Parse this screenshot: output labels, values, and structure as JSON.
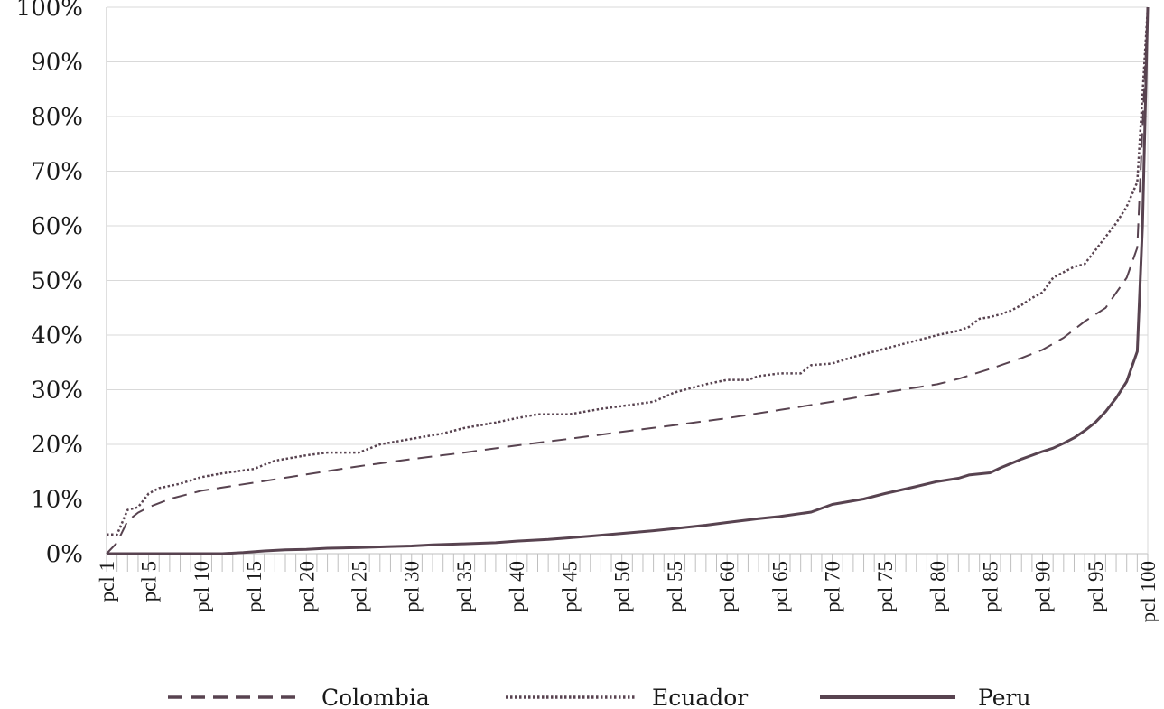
{
  "chart_data": {
    "type": "line",
    "title": "",
    "xlabel": "",
    "ylabel": "",
    "ylim": [
      0,
      100
    ],
    "y_ticks": [
      "0%",
      "10%",
      "20%",
      "30%",
      "40%",
      "50%",
      "60%",
      "70%",
      "80%",
      "90%",
      "100%"
    ],
    "x_tick_labels": [
      "pcl 1",
      "pcl 5",
      "pcl 10",
      "pcl 15",
      "pcl 20",
      "pcl 25",
      "pcl 30",
      "pcl 35",
      "pcl 40",
      "pcl 45",
      "pcl 50",
      "pcl 55",
      "pcl 60",
      "pcl 65",
      "pcl 70",
      "pcl 75",
      "pcl 80",
      "pcl 85",
      "pcl 90",
      "pcl 95",
      "pcl 100"
    ],
    "x_tick_positions": [
      1,
      5,
      10,
      15,
      20,
      25,
      30,
      35,
      40,
      45,
      50,
      55,
      60,
      65,
      70,
      75,
      80,
      85,
      90,
      95,
      100
    ],
    "grid": "horizontal",
    "legend": "bottom",
    "colors": {
      "line": "#584350",
      "grid": "#d9d9d9",
      "axis": "#bfbfbf"
    },
    "series": [
      {
        "name": "Colombia",
        "style": "dashed",
        "x": [
          1,
          2,
          3,
          4,
          5,
          7,
          10,
          15,
          20,
          25,
          30,
          35,
          40,
          45,
          50,
          55,
          60,
          65,
          70,
          75,
          80,
          82,
          85,
          88,
          90,
          92,
          94,
          96,
          98,
          99,
          100
        ],
        "y": [
          0,
          2,
          6,
          7.5,
          8.5,
          10,
          11.5,
          13,
          14.5,
          16,
          17.3,
          18.5,
          19.8,
          21,
          22.3,
          23.5,
          24.8,
          26.3,
          27.8,
          29.5,
          31,
          32,
          33.8,
          35.8,
          37.3,
          39.5,
          42.5,
          45,
          50.5,
          56,
          100
        ]
      },
      {
        "name": "Ecuador",
        "style": "dotted",
        "x": [
          1,
          2,
          3,
          4,
          5,
          6,
          8,
          10,
          12,
          15,
          17,
          20,
          22,
          25,
          27,
          30,
          33,
          35,
          38,
          40,
          42,
          45,
          48,
          50,
          53,
          55,
          58,
          60,
          62,
          63,
          65,
          67,
          68,
          70,
          72,
          75,
          78,
          80,
          82,
          83,
          84,
          85,
          86,
          87,
          88,
          89,
          90,
          91,
          92,
          93,
          94,
          95,
          96,
          97,
          98,
          99,
          100
        ],
        "y": [
          3.5,
          3.5,
          8,
          8.5,
          11,
          12,
          12.8,
          14,
          14.7,
          15.5,
          17,
          18,
          18.5,
          18.5,
          20,
          21,
          22,
          23,
          24,
          24.8,
          25.5,
          25.5,
          26.5,
          27,
          27.8,
          29.5,
          31,
          31.8,
          31.8,
          32.5,
          33,
          33,
          34.5,
          34.8,
          36,
          37.5,
          39,
          40,
          40.8,
          41.5,
          43,
          43.3,
          43.8,
          44.5,
          45.5,
          46.8,
          47.8,
          50.5,
          51.5,
          52.5,
          53,
          55.5,
          58,
          60.5,
          63.5,
          68,
          100
        ]
      },
      {
        "name": "Peru",
        "style": "solid",
        "x": [
          1,
          5,
          10,
          12,
          14,
          16,
          18,
          20,
          22,
          25,
          28,
          30,
          32,
          35,
          38,
          40,
          43,
          45,
          47,
          50,
          53,
          55,
          58,
          60,
          63,
          65,
          68,
          70,
          73,
          75,
          78,
          80,
          82,
          83,
          85,
          86,
          87,
          88,
          89,
          90,
          91,
          92,
          93,
          94,
          95,
          96,
          97,
          98,
          99,
          99.5,
          100
        ],
        "y": [
          0,
          0,
          0,
          0,
          0.2,
          0.5,
          0.7,
          0.8,
          1,
          1.1,
          1.3,
          1.4,
          1.6,
          1.8,
          2,
          2.3,
          2.6,
          2.9,
          3.2,
          3.7,
          4.2,
          4.6,
          5.2,
          5.7,
          6.4,
          6.8,
          7.6,
          9,
          10,
          11,
          12.3,
          13.2,
          13.8,
          14.4,
          14.8,
          15.7,
          16.5,
          17.3,
          18,
          18.7,
          19.3,
          20.2,
          21.2,
          22.5,
          24,
          26,
          28.5,
          31.5,
          37,
          60,
          100
        ]
      }
    ]
  }
}
